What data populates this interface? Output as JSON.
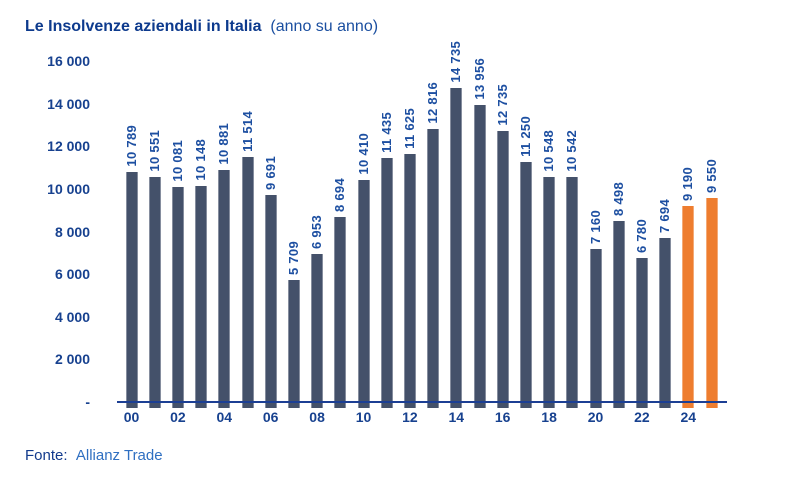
{
  "header": {
    "title": "Le Insolvenze aziendali in Italia",
    "subtitle": "(anno su anno)"
  },
  "footer": {
    "source_label": "Fonte:",
    "source_brand": "Allianz Trade"
  },
  "colors": {
    "bar": "#44516a",
    "bar_edge": "#aeb8ca",
    "highlight": "#ee7d2f",
    "axis_line": "#1c3f94",
    "tick_text": "#17418f",
    "value_text": "#1d4fa1",
    "title_bold": "#0d3a8d",
    "title_regular": "#1b4fa0"
  },
  "chart_data": {
    "type": "bar",
    "title": "Le Insolvenze aziendali in Italia (anno su anno)",
    "x": [
      2000,
      2001,
      2002,
      2003,
      2004,
      2005,
      2006,
      2007,
      2008,
      2009,
      2010,
      2011,
      2012,
      2013,
      2014,
      2015,
      2016,
      2017,
      2018,
      2019,
      2020,
      2021,
      2022,
      2023,
      2024,
      2025
    ],
    "values": [
      10789,
      10551,
      10081,
      10148,
      10881,
      11514,
      9691,
      5709,
      6953,
      8694,
      10410,
      11435,
      11625,
      12816,
      14735,
      13956,
      12735,
      11250,
      10548,
      10542,
      7160,
      8498,
      6780,
      7694,
      9190,
      9550
    ],
    "bar_labels": [
      "10 789",
      "10 551",
      "10 081",
      "10 148",
      "10 881",
      "11 514",
      "9 691",
      "5 709",
      "6 953",
      "8 694",
      "10 410",
      "11 435",
      "11 625",
      "12 816",
      "14 735",
      "13 956",
      "12 735",
      "11 250",
      "10 548",
      "10 542",
      "7 160",
      "8 498",
      "6 780",
      "7 694",
      "9 190",
      "9 550"
    ],
    "highlight_indices": [
      24,
      25
    ],
    "xticklabels": [
      "00",
      "02",
      "04",
      "06",
      "08",
      "10",
      "12",
      "14",
      "16",
      "18",
      "20",
      "22",
      "24"
    ],
    "yticklabels": [
      "16 000",
      "14 000",
      "12 000",
      "10 000",
      "8 000",
      "6 000",
      "4 000",
      "2 000",
      "-"
    ],
    "ytick_values": [
      16000,
      14000,
      12000,
      10000,
      8000,
      6000,
      4000,
      2000,
      0
    ],
    "ylim": [
      0,
      16000
    ],
    "grid": false,
    "legend": false,
    "xlabel": "",
    "ylabel": ""
  }
}
